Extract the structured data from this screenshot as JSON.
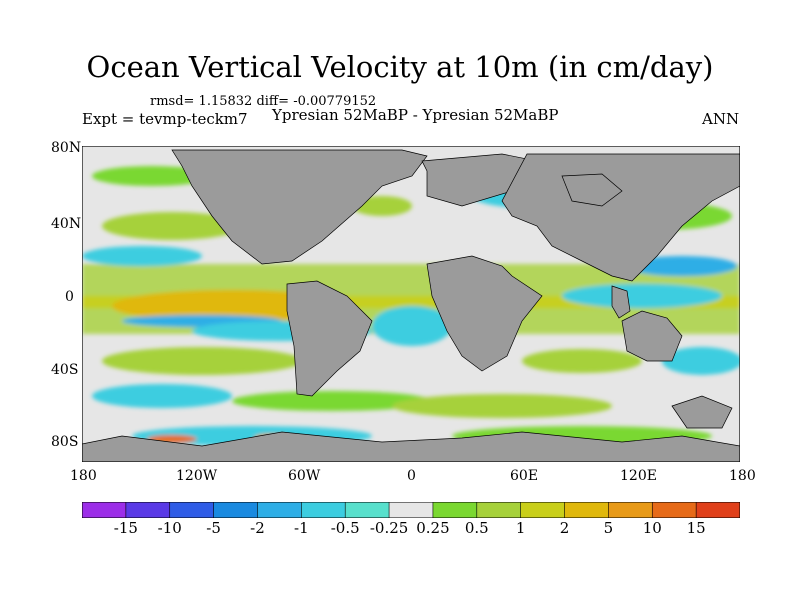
{
  "title": "Ocean Vertical Velocity at 10m (in cm/day)",
  "stats": "rmsd= 1.15832 diff= -0.00779152",
  "expt": "Expt = tevmp-teckm7",
  "case_label": "Ypresian  52MaBP - Ypresian  52MaBP",
  "season": "ANN",
  "lat_ticks": [
    "80N",
    "40N",
    "0",
    "40S",
    "80S"
  ],
  "lon_ticks": [
    "180",
    "120W",
    "60W",
    "0",
    "60E",
    "120E",
    "180"
  ],
  "colorbar": {
    "colors": [
      "#9c2ee8",
      "#5a3ae6",
      "#2f5ce6",
      "#1a8ae0",
      "#2eaee6",
      "#3ccde0",
      "#58e0cc",
      "#e6e6e6",
      "#7ad830",
      "#a6d13a",
      "#c9cf1a",
      "#e0b80c",
      "#e89a18",
      "#e66a18",
      "#e0401a"
    ],
    "labels": [
      "-15",
      "-10",
      "-5",
      "-2",
      "-1",
      "-0.5",
      "-0.25",
      "0.25",
      "0.5",
      "1",
      "2",
      "5",
      "10",
      "15"
    ]
  },
  "land_color": "#9b9b9b",
  "ocean_color": "#e6e6e6"
}
